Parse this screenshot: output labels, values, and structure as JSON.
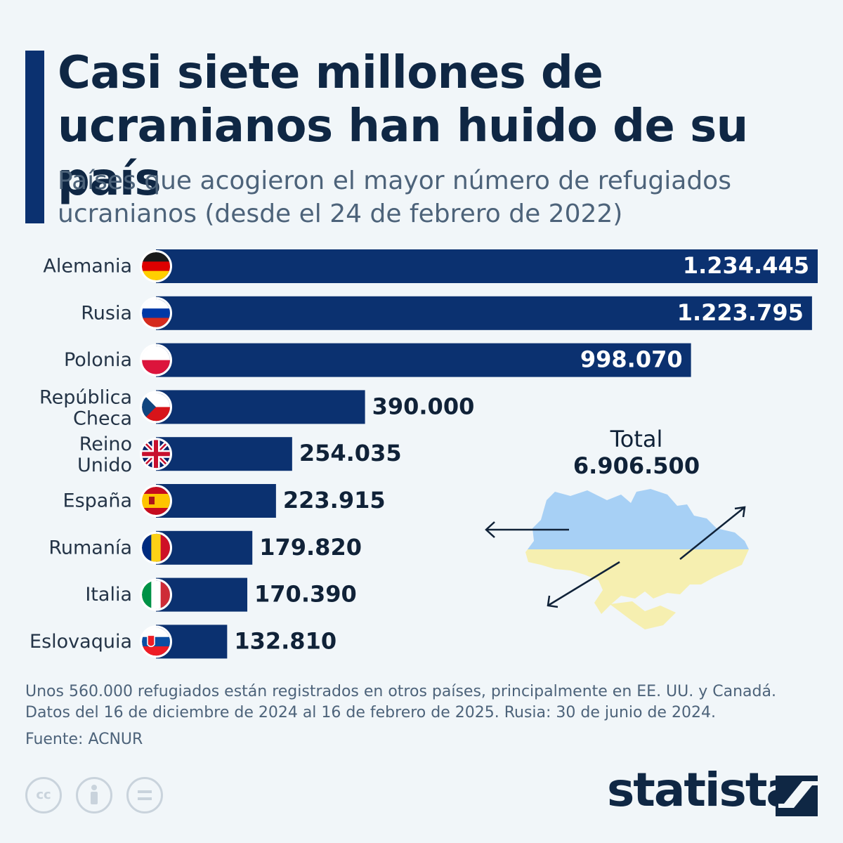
{
  "header": {
    "title": "Casi siete millones de ucranianos han huido de su país",
    "subtitle": "Países que acogieron el mayor número de refugiados ucranianos (desde el 24 de febrero de 2022)"
  },
  "chart_data": {
    "type": "bar",
    "orientation": "horizontal",
    "title": "Casi siete millones de ucranianos han huido de su país",
    "subtitle": "Países que acogieron el mayor número de refugiados ucranianos (desde el 24 de febrero de 2022)",
    "categories": [
      [
        "Alemania"
      ],
      [
        "Rusia"
      ],
      [
        "Polonia"
      ],
      [
        "República",
        "Checa"
      ],
      [
        "Reino",
        "Unido"
      ],
      [
        "España"
      ],
      [
        "Rumanía"
      ],
      [
        "Italia"
      ],
      [
        "Eslovaquia"
      ]
    ],
    "values": [
      1234445,
      1223795,
      998070,
      390000,
      254035,
      223915,
      179820,
      170390,
      132810
    ],
    "value_labels": [
      "1.234.445",
      "1.223.795",
      "998.070",
      "390.000",
      "254.035",
      "223.915",
      "179.820",
      "170.390",
      "132.810"
    ],
    "flags": [
      "germany-flag-icon",
      "russia-flag-icon",
      "poland-flag-icon",
      "czech-republic-flag-icon",
      "united-kingdom-flag-icon",
      "spain-flag-icon",
      "romania-flag-icon",
      "italy-flag-icon",
      "slovakia-flag-icon"
    ],
    "xlim": [
      0,
      1234445
    ],
    "grid": false,
    "bar_color": "#0b3170"
  },
  "total": {
    "label": "Total",
    "value": "6.906.500"
  },
  "footnote": {
    "line1": "Unos 560.000 refugiados están registrados en otros países, principalmente en EE. UU. y Canadá.",
    "line2": "Datos del 16 de diciembre de 2024 al 16 de febrero de 2025. Rusia: 30 de junio de 2024."
  },
  "source": "Fuente: ACNUR",
  "brand": "statista",
  "colors": {
    "background": "#f1f6f9",
    "accent": "#0b3170",
    "title": "#0f2744",
    "ukraine_blue": "#a7d0f5",
    "ukraine_yellow": "#f6efb0"
  }
}
